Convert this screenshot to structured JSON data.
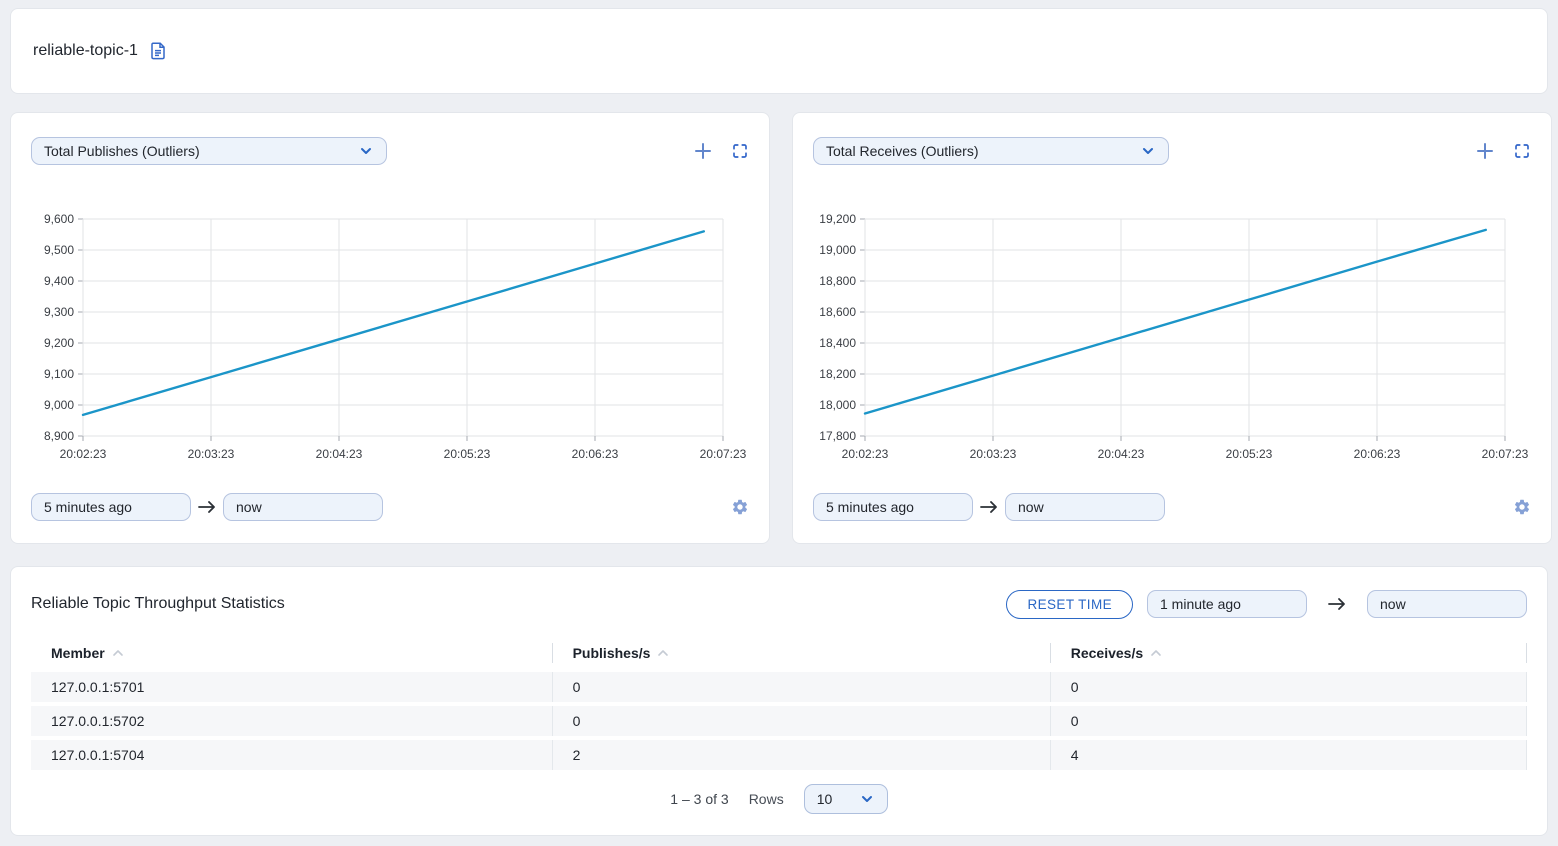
{
  "page_title": "reliable-topic-1",
  "colors": {
    "accent": "#2a67c5",
    "line": "#1b95c8"
  },
  "charts": [
    {
      "metric_label": "Total Publishes (Outliers)",
      "time_from": "5 minutes ago",
      "time_to": "now"
    },
    {
      "metric_label": "Total Receives (Outliers)",
      "time_from": "5 minutes ago",
      "time_to": "now"
    }
  ],
  "chart_data": [
    {
      "type": "line",
      "title": "Total Publishes (Outliers)",
      "xlabel": "",
      "ylabel": "",
      "grid": true,
      "legend": "none",
      "xlim": [
        0,
        300
      ],
      "x_tick_seconds": [
        0,
        60,
        120,
        180,
        240,
        300
      ],
      "x_tick_labels": [
        "20:02:23",
        "20:03:23",
        "20:04:23",
        "20:05:23",
        "20:06:23",
        "20:07:23"
      ],
      "ylim": [
        8900,
        9600
      ],
      "y_ticks": [
        8900,
        9000,
        9100,
        9200,
        9300,
        9400,
        9500,
        9600
      ],
      "series": [
        {
          "name": "Total Publishes",
          "color": "#1b95c8",
          "x": [
            0,
            60,
            120,
            180,
            240,
            291
          ],
          "values": [
            8968,
            9090,
            9212,
            9334,
            9456,
            9560
          ]
        }
      ]
    },
    {
      "type": "line",
      "title": "Total Receives (Outliers)",
      "xlabel": "",
      "ylabel": "",
      "grid": true,
      "legend": "none",
      "xlim": [
        0,
        300
      ],
      "x_tick_seconds": [
        0,
        60,
        120,
        180,
        240,
        300
      ],
      "x_tick_labels": [
        "20:02:23",
        "20:03:23",
        "20:04:23",
        "20:05:23",
        "20:06:23",
        "20:07:23"
      ],
      "ylim": [
        17800,
        19200
      ],
      "y_ticks": [
        17800,
        18000,
        18200,
        18400,
        18600,
        18800,
        19000,
        19200
      ],
      "series": [
        {
          "name": "Total Receives",
          "color": "#1b95c8",
          "x": [
            0,
            60,
            120,
            180,
            240,
            291
          ],
          "values": [
            17945,
            18190,
            18435,
            18680,
            18925,
            19130
          ]
        }
      ]
    }
  ],
  "table": {
    "title": "Reliable Topic Throughput Statistics",
    "reset_button": "RESET TIME",
    "time_from": "1 minute ago",
    "time_to": "now",
    "columns": [
      "Member",
      "Publishes/s",
      "Receives/s"
    ],
    "rows": [
      [
        "127.0.0.1:5701",
        "0",
        "0"
      ],
      [
        "127.0.0.1:5702",
        "0",
        "0"
      ],
      [
        "127.0.0.1:5704",
        "2",
        "4"
      ]
    ],
    "pagination": {
      "range_text": "1 – 3 of 3",
      "rows_label": "Rows",
      "page_size": "10"
    }
  }
}
